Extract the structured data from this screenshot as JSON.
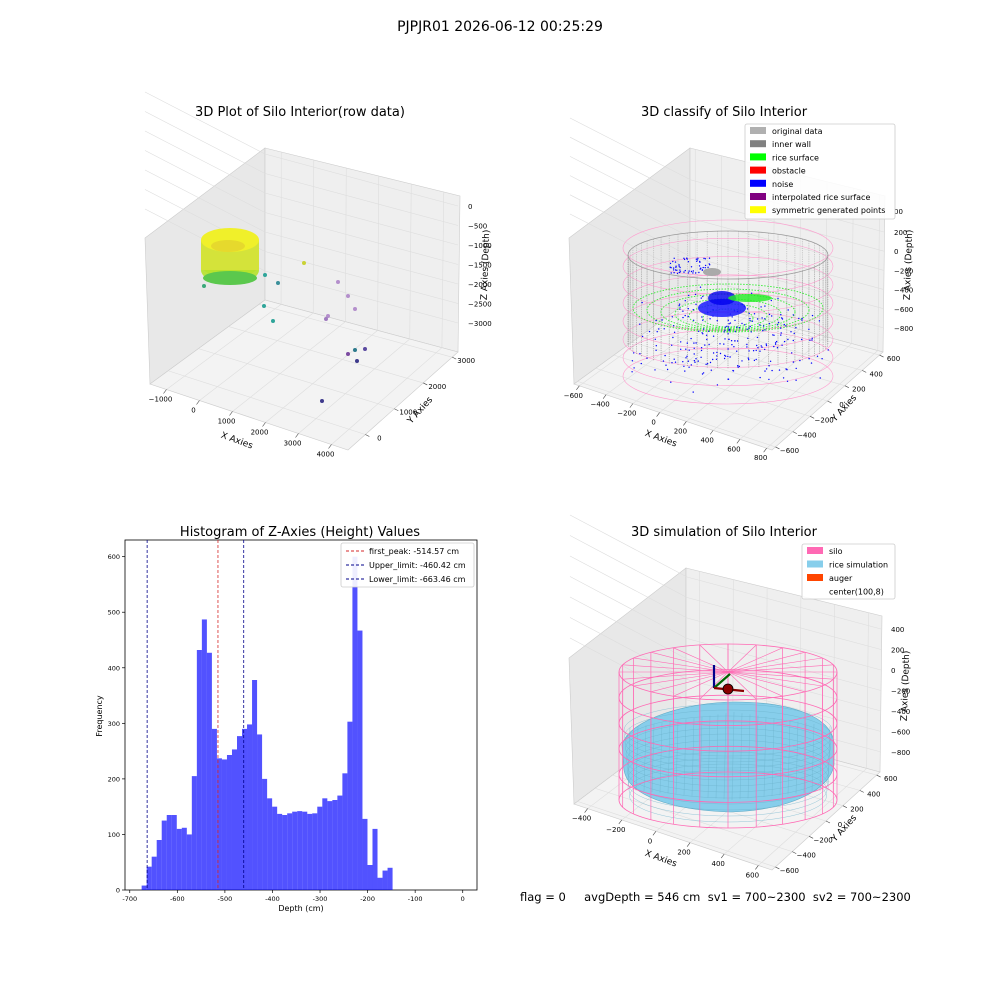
{
  "figure_title": "PJPJR01 2026-06-12 00:25:29",
  "status_line": "flag = 0     avgDepth = 546 cm  sv1 = 700~2300  sv2 = 700~2300",
  "colors": {
    "hist_bar": "#0000ff",
    "first_peak": "#d62728",
    "limit": "#00008b",
    "silo": "#ff69b4",
    "rice": "#87ceeb",
    "auger": "#ff4500",
    "noise": "#0000ff",
    "rice_surface": "#00ff00",
    "original": "#b0b0b0",
    "inner_wall": "#808080"
  },
  "chart_data": [
    {
      "type": "scatter",
      "title": "3D Plot of Silo Interior(row data)",
      "xlabel": "X Axies",
      "ylabel": "Y Axies",
      "zlabel": "Z Axies (Depth)",
      "x_ticks": [
        "−1000",
        "0",
        "1000",
        "2000",
        "3000",
        "4000"
      ],
      "y_ticks": [
        "0",
        "1000",
        "2000",
        "3000"
      ],
      "z_ticks": [
        "0",
        "−500",
        "−1000",
        "−1500",
        "−2000",
        "−2500",
        "−3000"
      ]
    },
    {
      "type": "scatter",
      "title": "3D classify of Silo Interior",
      "xlabel": "X Axies",
      "ylabel": "Y Axies",
      "zlabel": "Z Axies (Depth)",
      "legend": [
        {
          "label": "original data",
          "color": "#b0b0b0"
        },
        {
          "label": "inner wall",
          "color": "#808080"
        },
        {
          "label": "rice surface",
          "color": "#00ff00"
        },
        {
          "label": "obstacle",
          "color": "#ff0000"
        },
        {
          "label": "noise",
          "color": "#0000ff"
        },
        {
          "label": "interpolated rice surface",
          "color": "#800080"
        },
        {
          "label": "symmetric generated points",
          "color": "#ffff00"
        }
      ],
      "x_ticks": [
        "−600",
        "−400",
        "−200",
        "0",
        "200",
        "400",
        "600",
        "800"
      ],
      "y_ticks": [
        "−600",
        "−400",
        "−200",
        "0",
        "200",
        "400",
        "600"
      ],
      "z_ticks": [
        "200",
        "0",
        "−200",
        "−400",
        "−600",
        "−800"
      ],
      "z_tick_extra": "00"
    },
    {
      "type": "bar",
      "title": "Histogram of Z-Axies (Height) Values",
      "xlabel": "Depth (cm)",
      "ylabel": "Frequency",
      "xlim": [
        -710,
        30
      ],
      "ylim": [
        0,
        630
      ],
      "x_ticks": [
        -700,
        -600,
        -500,
        -400,
        -300,
        -200,
        -100,
        0
      ],
      "y_ticks": [
        0,
        100,
        200,
        300,
        400,
        500,
        600
      ],
      "bin_start": -675,
      "bin_width": 10.55,
      "values": [
        8,
        42,
        60,
        90,
        125,
        135,
        135,
        110,
        112,
        100,
        205,
        432,
        487,
        427,
        290,
        237,
        235,
        243,
        253,
        277,
        290,
        298,
        378,
        280,
        200,
        165,
        150,
        137,
        135,
        138,
        141,
        142,
        141,
        137,
        138,
        150,
        165,
        160,
        162,
        170,
        210,
        303,
        600,
        467,
        128,
        45,
        110,
        22,
        35,
        40
      ],
      "vlines": [
        {
          "label": "first_peak: -514.57 cm",
          "x": -514.57,
          "color": "#d62728"
        },
        {
          "label": "Upper_limit: -460.42 cm",
          "x": -460.42,
          "color": "#00008b"
        },
        {
          "label": "Lower_limit: -663.46 cm",
          "x": -663.46,
          "color": "#00008b"
        }
      ]
    },
    {
      "type": "scatter",
      "title": "3D simulation of Silo Interior",
      "xlabel": "X Axies",
      "ylabel": "Y Axies",
      "zlabel": "Z Axies (Depth)",
      "legend": [
        {
          "label": "silo",
          "color": "#ff69b4"
        },
        {
          "label": "rice simulation",
          "color": "#87ceeb"
        },
        {
          "label": "auger",
          "color": "#ff4500"
        },
        {
          "label": "center(100,8)",
          "color": ""
        }
      ],
      "x_ticks": [
        "−400",
        "−200",
        "0",
        "200",
        "400",
        "600"
      ],
      "y_ticks": [
        "−600",
        "−400",
        "−200",
        "0",
        "200",
        "400",
        "600"
      ],
      "z_ticks": [
        "400",
        "200",
        "0",
        "−200",
        "−400",
        "−600",
        "−800"
      ]
    }
  ]
}
